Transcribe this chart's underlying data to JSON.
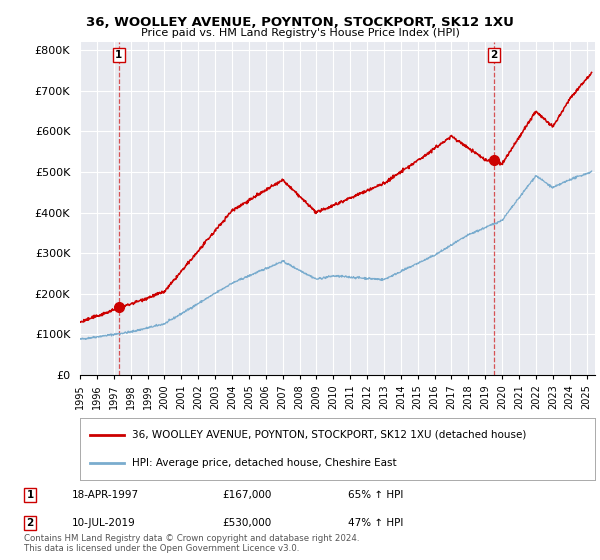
{
  "title1": "36, WOOLLEY AVENUE, POYNTON, STOCKPORT, SK12 1XU",
  "title2": "Price paid vs. HM Land Registry's House Price Index (HPI)",
  "ylabel_ticks": [
    "£0",
    "£100K",
    "£200K",
    "£300K",
    "£400K",
    "£500K",
    "£600K",
    "£700K",
    "£800K"
  ],
  "ytick_vals": [
    0,
    100000,
    200000,
    300000,
    400000,
    500000,
    600000,
    700000,
    800000
  ],
  "ylim": [
    0,
    820000
  ],
  "xlim_start": 1995.0,
  "xlim_end": 2025.5,
  "sale1_date": 1997.3,
  "sale1_price": 167000,
  "sale2_date": 2019.52,
  "sale2_price": 530000,
  "legend_line1": "36, WOOLLEY AVENUE, POYNTON, STOCKPORT, SK12 1XU (detached house)",
  "legend_line2": "HPI: Average price, detached house, Cheshire East",
  "footnote": "Contains HM Land Registry data © Crown copyright and database right 2024.\nThis data is licensed under the Open Government Licence v3.0.",
  "line_color_red": "#cc0000",
  "line_color_blue": "#7aacce",
  "bg_color": "#e8eaf0",
  "grid_color": "#ffffff",
  "xtick_years": [
    1995,
    1996,
    1997,
    1998,
    1999,
    2000,
    2001,
    2002,
    2003,
    2004,
    2005,
    2006,
    2007,
    2008,
    2009,
    2010,
    2011,
    2012,
    2013,
    2014,
    2015,
    2016,
    2017,
    2018,
    2019,
    2020,
    2021,
    2022,
    2023,
    2024,
    2025
  ]
}
